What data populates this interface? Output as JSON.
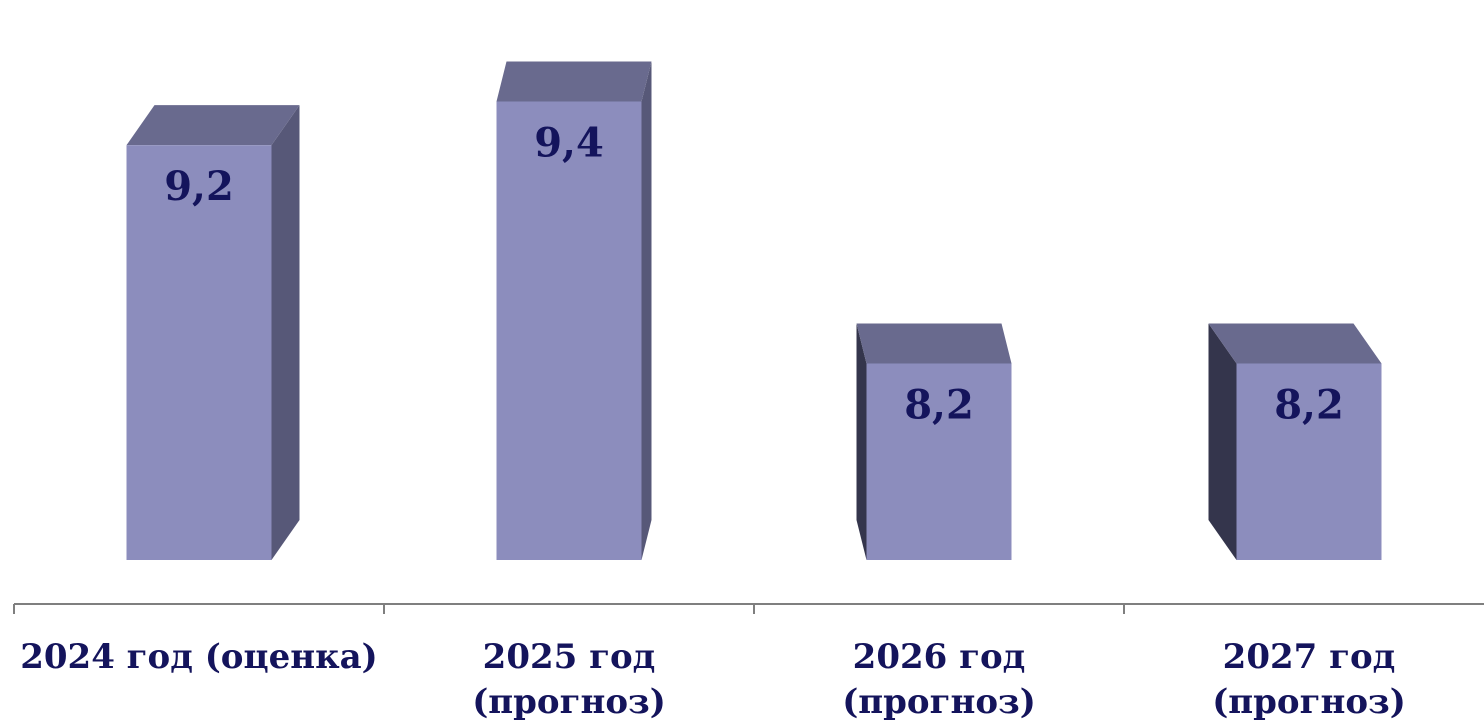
{
  "chart_data": {
    "type": "bar",
    "style": "3d-column",
    "categories": [
      [
        "2024 год (оценка)"
      ],
      [
        "2025 год",
        "(прогноз)"
      ],
      [
        "2026 год",
        "(прогноз)"
      ],
      [
        "2027 год",
        "(прогноз)"
      ]
    ],
    "values": [
      9.2,
      9.4,
      8.2,
      8.2
    ],
    "value_labels": [
      "9,2",
      "9,4",
      "8,2",
      "8,2"
    ],
    "title": "",
    "xlabel": "",
    "ylabel": "",
    "ylim": [
      7.3,
      9.7
    ],
    "grid": false,
    "legend": "none",
    "colors": {
      "front": "#8c8dbd",
      "top": "#696a8e",
      "side": "#575878",
      "side_dark": "#34354c",
      "axis": "#7f7f7f",
      "label_text": "#14145c"
    }
  }
}
